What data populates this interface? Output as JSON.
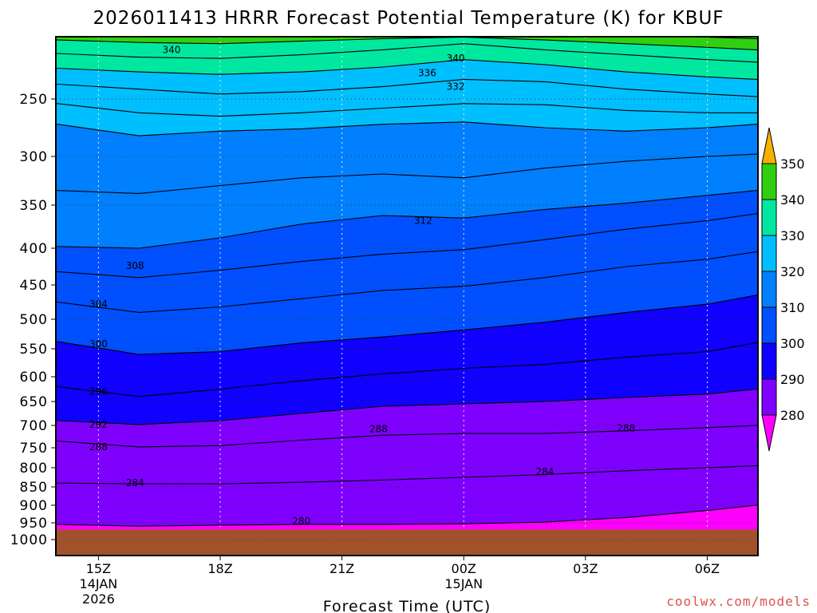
{
  "chart_data": {
    "type": "heatmap",
    "title": "2026011413 HRRR Forecast Potential Temperature (K) for KBUF",
    "xlabel": "Forecast Time (UTC)",
    "ylabel": "",
    "x_range_hours": [
      13.95,
      31.25
    ],
    "y_range_hpa": [
      1050,
      200
    ],
    "x_ticks": [
      {
        "hour": 15,
        "label": "15Z",
        "sub1": "14JAN",
        "sub2": "2026"
      },
      {
        "hour": 18,
        "label": "18Z",
        "sub1": "",
        "sub2": ""
      },
      {
        "hour": 21,
        "label": "21Z",
        "sub1": "",
        "sub2": ""
      },
      {
        "hour": 24,
        "label": "00Z",
        "sub1": "15JAN",
        "sub2": ""
      },
      {
        "hour": 27,
        "label": "03Z",
        "sub1": "",
        "sub2": ""
      },
      {
        "hour": 30,
        "label": "06Z",
        "sub1": "",
        "sub2": ""
      }
    ],
    "y_ticks": [
      {
        "p": 250,
        "label": "250"
      },
      {
        "p": 300,
        "label": "300"
      },
      {
        "p": 350,
        "label": "350"
      },
      {
        "p": 400,
        "label": "400"
      },
      {
        "p": 450,
        "label": "450"
      },
      {
        "p": 500,
        "label": "500"
      },
      {
        "p": 550,
        "label": "550"
      },
      {
        "p": 600,
        "label": "600"
      },
      {
        "p": 650,
        "label": "650"
      },
      {
        "p": 700,
        "label": "700"
      },
      {
        "p": 750,
        "label": "750"
      },
      {
        "p": 800,
        "label": "800"
      },
      {
        "p": 850,
        "label": "850"
      },
      {
        "p": 900,
        "label": "900"
      },
      {
        "p": 950,
        "label": "950"
      },
      {
        "p": 1000,
        "label": "1000"
      }
    ],
    "ground_pressure_hpa": 970,
    "legend": {
      "placement": "right",
      "levels": [
        280,
        290,
        300,
        310,
        320,
        330,
        340,
        350
      ],
      "labels": [
        "280",
        "290",
        "300",
        "310",
        "320",
        "330",
        "340",
        "350"
      ],
      "colors": [
        "#7f00ff",
        "#1000ff",
        "#0050ff",
        "#0080ff",
        "#00bfff",
        "#00e8a0",
        "#30d010",
        "#f0f000"
      ],
      "below_color": "#ff00ff",
      "above_color": "#f8b000"
    },
    "times_hours": [
      14,
      16,
      18,
      20,
      22,
      24,
      26,
      28,
      30,
      31.2
    ],
    "isentrope_pressure_hpa": {
      "280": [
        955,
        960,
        957,
        955,
        955,
        953,
        948,
        935,
        915,
        900
      ],
      "284": [
        840,
        842,
        842,
        838,
        832,
        825,
        818,
        808,
        800,
        795
      ],
      "288": [
        735,
        748,
        745,
        733,
        722,
        718,
        718,
        712,
        705,
        700
      ],
      "292": [
        690,
        698,
        690,
        675,
        660,
        655,
        650,
        642,
        635,
        625
      ],
      "296": [
        620,
        640,
        625,
        608,
        595,
        585,
        578,
        565,
        555,
        540
      ],
      "300": [
        538,
        560,
        555,
        540,
        530,
        518,
        505,
        490,
        478,
        465
      ],
      "304": [
        475,
        490,
        482,
        470,
        458,
        452,
        440,
        425,
        415,
        405
      ],
      "308": [
        432,
        440,
        430,
        418,
        408,
        402,
        390,
        378,
        368,
        360
      ],
      "312": [
        398,
        400,
        388,
        372,
        362,
        365,
        355,
        348,
        340,
        335
      ],
      "316": [
        335,
        338,
        330,
        322,
        318,
        322,
        312,
        305,
        300,
        298
      ],
      "320": [
        272,
        282,
        278,
        276,
        272,
        270,
        275,
        278,
        275,
        272
      ],
      "324": [
        254,
        262,
        265,
        262,
        258,
        254,
        255,
        260,
        262,
        262
      ],
      "328": [
        238,
        242,
        246,
        244,
        240,
        234,
        236,
        242,
        246,
        248
      ],
      "332": [
        225,
        228,
        230,
        228,
        224,
        218,
        222,
        228,
        232,
        234
      ],
      "336": [
        213,
        216,
        217,
        214,
        210,
        205,
        210,
        214,
        218,
        220
      ],
      "340": [
        202,
        204,
        205,
        203,
        201,
        199,
        202,
        205,
        208,
        210
      ],
      "344": [
        196,
        197,
        197,
        196,
        195,
        194,
        195,
        197,
        199,
        201
      ],
      "348": [
        190,
        190,
        190,
        190,
        190,
        190,
        190,
        191,
        193,
        195
      ]
    },
    "contour_labels": [
      {
        "text": "340",
        "hour": 16.8,
        "p": 210
      },
      {
        "text": "340",
        "hour": 23.8,
        "p": 217
      },
      {
        "text": "336",
        "hour": 23.1,
        "p": 229
      },
      {
        "text": "332",
        "hour": 23.8,
        "p": 240
      },
      {
        "text": "312",
        "hour": 23.0,
        "p": 368
      },
      {
        "text": "308",
        "hour": 15.9,
        "p": 424
      },
      {
        "text": "304",
        "hour": 15.0,
        "p": 478
      },
      {
        "text": "300",
        "hour": 15.0,
        "p": 542
      },
      {
        "text": "296",
        "hour": 15.0,
        "p": 630
      },
      {
        "text": "292",
        "hour": 15.0,
        "p": 698
      },
      {
        "text": "288",
        "hour": 15.0,
        "p": 748
      },
      {
        "text": "288",
        "hour": 21.9,
        "p": 708
      },
      {
        "text": "288",
        "hour": 28.0,
        "p": 706
      },
      {
        "text": "284",
        "hour": 15.9,
        "p": 840
      },
      {
        "text": "284",
        "hour": 26.0,
        "p": 810
      },
      {
        "text": "280",
        "hour": 20.0,
        "p": 946
      }
    ]
  },
  "credit": "coolwx.com/models"
}
